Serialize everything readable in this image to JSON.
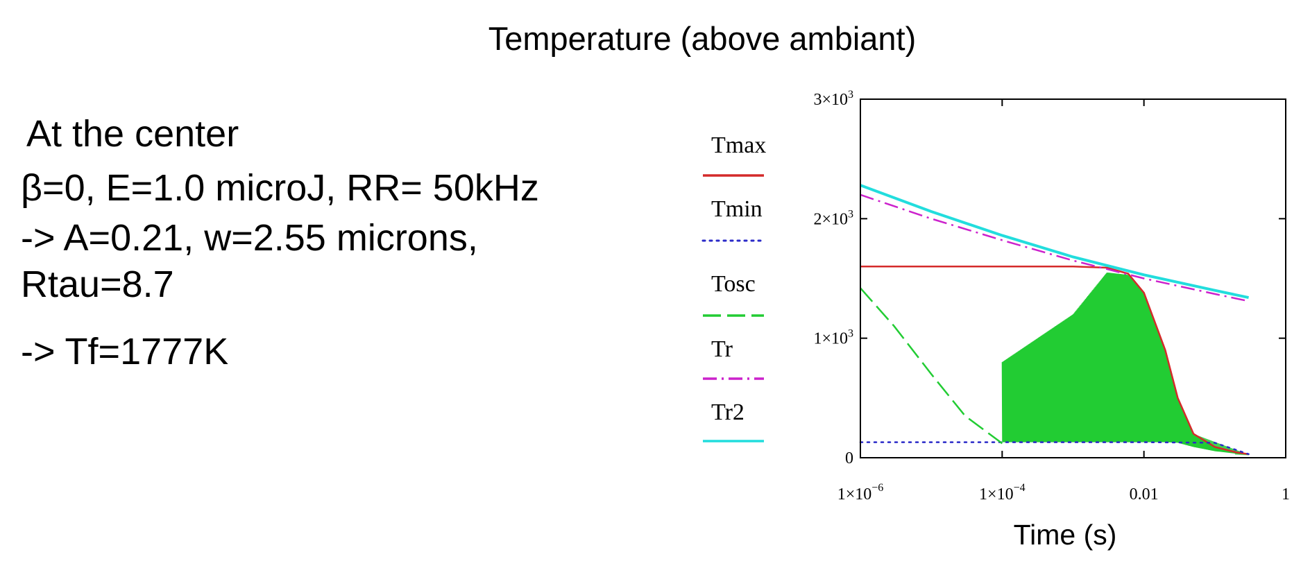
{
  "text": {
    "line1": "At the center",
    "line2": "β=0, E=1.0 microJ, RR= 50kHz",
    "line3": "-> A=0.21, w=2.55 microns,",
    "line4": "Rtau=8.7",
    "line5": "-> Tf=1777K"
  },
  "chart_data": {
    "type": "line",
    "title": "Temperature (above ambiant)",
    "xlabel": "Time (s)",
    "ylabel": "",
    "xscale": "log",
    "xlim": [
      1e-06,
      1
    ],
    "ylim": [
      0,
      3000
    ],
    "x_ticks": [
      {
        "value": 1e-06,
        "base": "1×10",
        "exp": "−6"
      },
      {
        "value": 0.0001,
        "base": "1×10",
        "exp": "−4"
      },
      {
        "value": 0.01,
        "base": "0.01",
        "exp": ""
      },
      {
        "value": 1,
        "base": "1",
        "exp": ""
      }
    ],
    "y_ticks": [
      {
        "value": 0,
        "base": "0",
        "exp": ""
      },
      {
        "value": 1000,
        "base": "1×10",
        "exp": "3"
      },
      {
        "value": 2000,
        "base": "2×10",
        "exp": "3"
      },
      {
        "value": 3000,
        "base": "3×10",
        "exp": "3"
      }
    ],
    "legend_position": "left",
    "series": [
      {
        "name": "Tmax",
        "color": "#d42a2a",
        "style": "solid",
        "x": [
          1e-06,
          0.0001,
          0.001,
          0.003,
          0.006,
          0.01,
          0.02,
          0.03,
          0.05,
          0.1,
          0.2,
          0.3
        ],
        "values": [
          1600,
          1600,
          1600,
          1590,
          1540,
          1380,
          900,
          500,
          200,
          90,
          45,
          30
        ]
      },
      {
        "name": "Tmin",
        "color": "#2a2ac8",
        "style": "dotted",
        "x": [
          1e-06,
          0.01,
          0.1,
          0.3
        ],
        "values": [
          130,
          130,
          125,
          30
        ]
      },
      {
        "name": "Tosc",
        "color": "#22cc33",
        "style": "dashed",
        "x": [
          1e-06,
          3e-06,
          1e-05,
          3e-05,
          0.0001
        ],
        "values": [
          1420,
          1100,
          700,
          350,
          120
        ]
      },
      {
        "name": "Tr",
        "color": "#cc22cc",
        "style": "dashdot",
        "x": [
          1e-06,
          1e-05,
          0.0001,
          0.001,
          0.01,
          0.1,
          0.3
        ],
        "values": [
          2200,
          2000,
          1820,
          1650,
          1500,
          1370,
          1310
        ]
      },
      {
        "name": "Tr2",
        "color": "#22dddd",
        "style": "solid",
        "x": [
          1e-06,
          1e-05,
          0.0001,
          0.001,
          0.01,
          0.1,
          0.3
        ],
        "values": [
          2280,
          2060,
          1860,
          1680,
          1530,
          1400,
          1340
        ]
      }
    ],
    "tosc_oscillation": {
      "x_start": 0.0001,
      "x_end": 0.3,
      "peak_count": 340,
      "floor_x": [
        0.0001,
        0.0003,
        0.001,
        0.003,
        0.01,
        0.02,
        0.03,
        0.05,
        0.1,
        0.2,
        0.3
      ],
      "floor_values": [
        130,
        130,
        130,
        130,
        130,
        130,
        125,
        90,
        55,
        35,
        25
      ],
      "peak_x": [
        0.0001,
        0.001,
        0.003,
        0.006,
        0.01,
        0.02,
        0.03,
        0.05,
        0.1,
        0.2,
        0.3
      ],
      "peak_values": [
        800,
        1200,
        1550,
        1530,
        1380,
        900,
        500,
        200,
        90,
        45,
        30
      ]
    }
  }
}
